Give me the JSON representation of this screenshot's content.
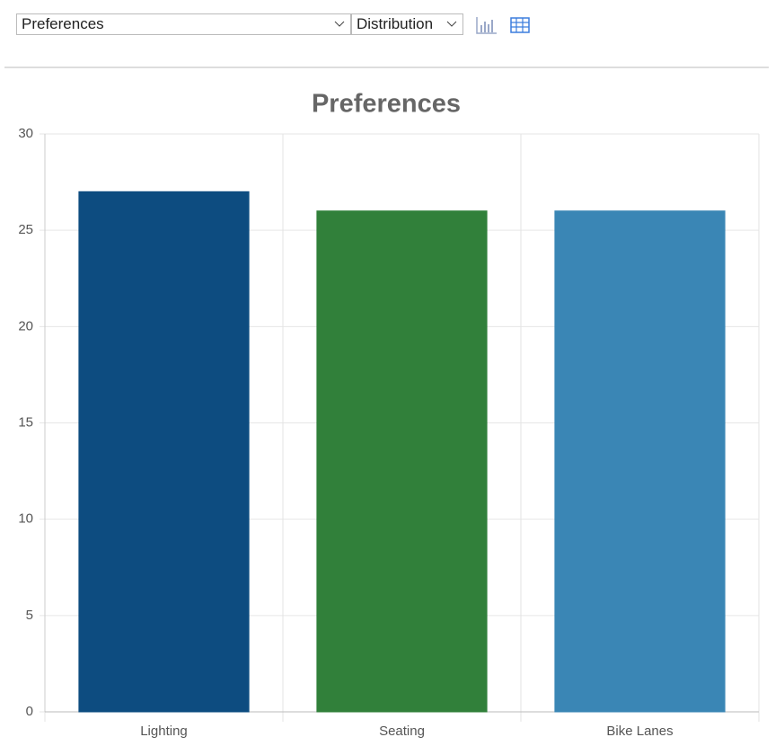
{
  "toolbar": {
    "dataset_select": "Preferences",
    "view_select": "Distribution"
  },
  "chart_data": {
    "type": "bar",
    "title": "Preferences",
    "categories": [
      "Lighting",
      "Seating",
      "Bike Lanes"
    ],
    "values": [
      27,
      26,
      26
    ],
    "colors": [
      "#0d4c80",
      "#31803a",
      "#3a86b5"
    ],
    "ylim": [
      0,
      30
    ],
    "yticks": [
      0,
      5,
      10,
      15,
      20,
      25,
      30
    ],
    "grid": true
  }
}
